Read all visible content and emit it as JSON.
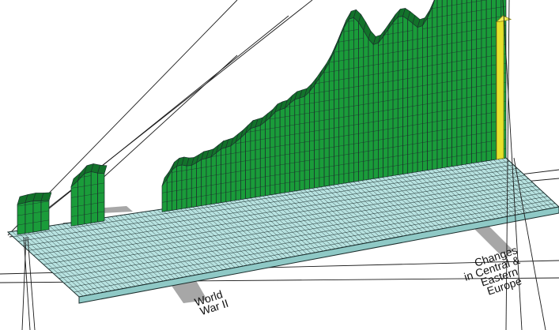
{
  "colors": {
    "surface": "#1a9c3a",
    "surface_dark": "#12722a",
    "floor": "#b8e3e1",
    "grid": "#1b2d2c",
    "highlight": "#e6e12c",
    "shadow": "#a7a7a7",
    "lines": "#1a1a1a"
  },
  "chart_data": {
    "type": "area",
    "title": "",
    "xlabel": "",
    "ylabel": "",
    "grid": true,
    "legend": "none",
    "series": [
      {
        "segments": [
          {
            "values": [
              38,
              40,
              39,
              37
            ]
          },
          {
            "values": [
              50,
              62,
              66,
              64,
              60
            ]
          },
          {
            "values": [
              33,
              48,
              54,
              56,
              55,
              52,
              54,
              57,
              60,
              58,
              62,
              66,
              70,
              68,
              72,
              76,
              80,
              86,
              90,
              88,
              92,
              96,
              100,
              108,
              104,
              110,
              114,
              118,
              116,
              120,
              126,
              134,
              142,
              150,
              162,
              176,
              190,
              204,
              210,
              206,
              196,
              184,
              172,
              168,
              174,
              182,
              190,
              198,
              202,
              198,
              192,
              186,
              180,
              188,
              198,
              214,
              234,
              246,
              232,
              218,
              210,
              212,
              224,
              238,
              250,
              258,
              262,
              256,
              260,
              266
            ]
          }
        ]
      }
    ],
    "highlight": {
      "value": 174
    },
    "annotations": [
      {
        "id": "ww2",
        "lines": [
          "World",
          "War II"
        ]
      },
      {
        "id": "cee",
        "lines": [
          "Changes",
          "in Central &",
          "Eastern",
          "Europe"
        ]
      }
    ]
  }
}
